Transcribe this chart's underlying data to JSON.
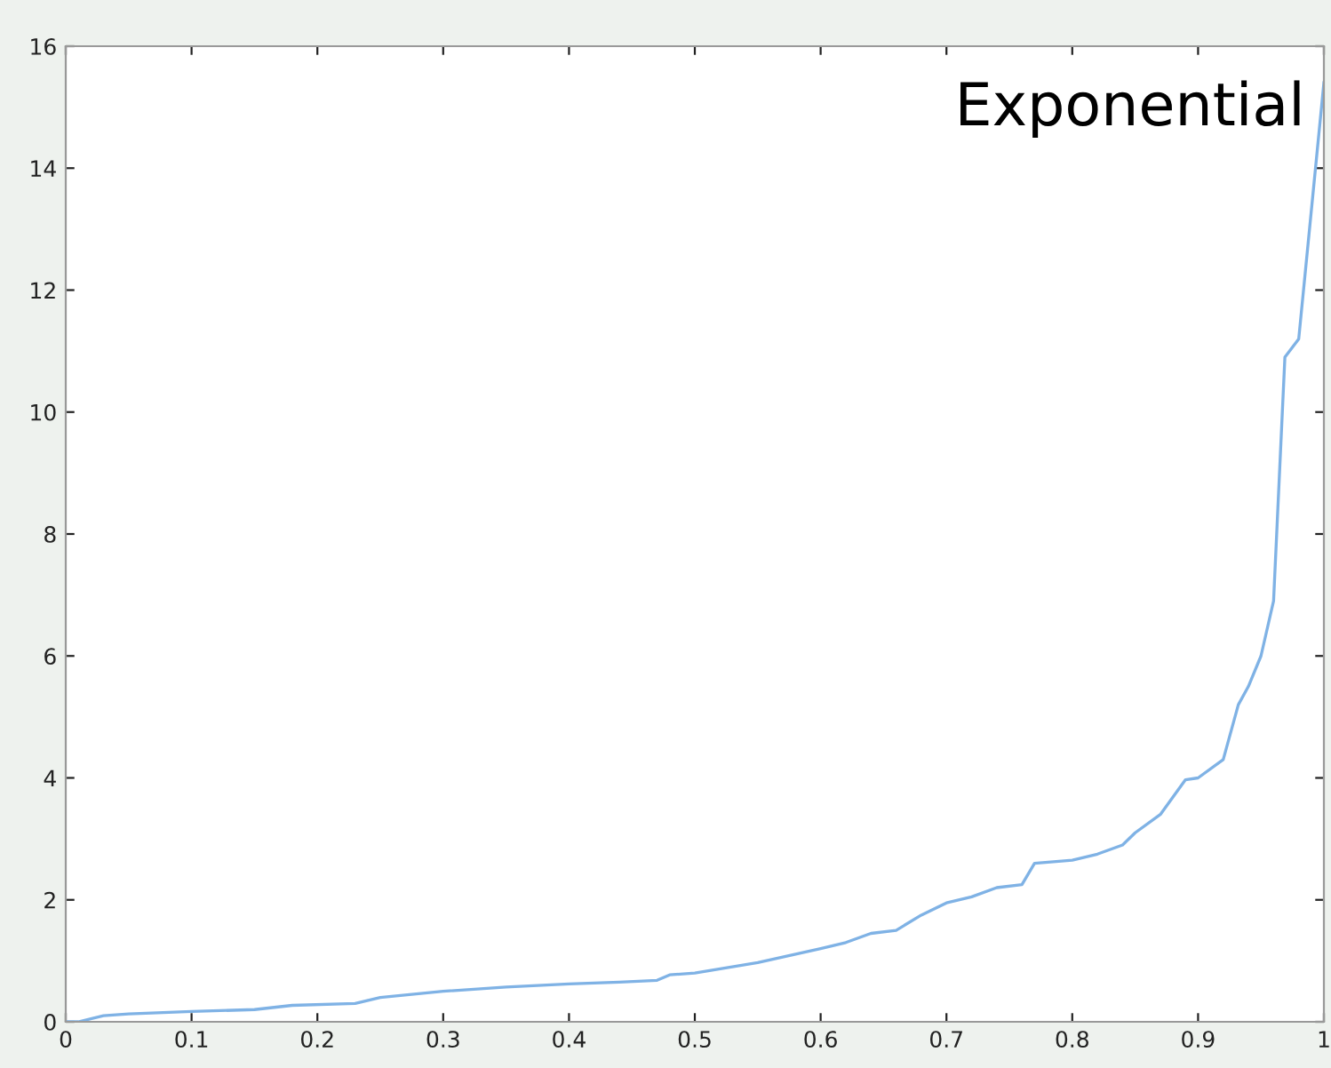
{
  "chart_data": {
    "type": "line",
    "title": "Exponential",
    "series": [
      {
        "color": "#7fb2e5",
        "x": [
          0,
          0.01,
          0.03,
          0.05,
          0.1,
          0.15,
          0.18,
          0.23,
          0.25,
          0.3,
          0.35,
          0.4,
          0.44,
          0.47,
          0.48,
          0.5,
          0.55,
          0.6,
          0.62,
          0.64,
          0.66,
          0.68,
          0.7,
          0.72,
          0.74,
          0.76,
          0.77,
          0.8,
          0.82,
          0.84,
          0.85,
          0.87,
          0.89,
          0.9,
          0.92,
          0.932,
          0.94,
          0.95,
          0.96,
          0.969,
          0.98,
          1.0
        ],
        "values": [
          0,
          0,
          0.1,
          0.13,
          0.17,
          0.2,
          0.27,
          0.3,
          0.4,
          0.5,
          0.57,
          0.62,
          0.65,
          0.68,
          0.77,
          0.8,
          0.97,
          1.2,
          1.3,
          1.45,
          1.5,
          1.75,
          1.95,
          2.05,
          2.2,
          2.25,
          2.6,
          2.65,
          2.75,
          2.9,
          3.1,
          3.4,
          3.97,
          4.0,
          4.3,
          5.2,
          5.5,
          6.0,
          6.9,
          10.9,
          11.2,
          15.4
        ]
      }
    ],
    "xlim": [
      0,
      1
    ],
    "ylim": [
      0,
      16
    ],
    "xticks": [
      0,
      0.1,
      0.2,
      0.3,
      0.4,
      0.5,
      0.6,
      0.7,
      0.8,
      0.9,
      1
    ],
    "yticks": [
      0,
      2,
      4,
      6,
      8,
      10,
      12,
      14,
      16
    ],
    "grid": false,
    "legend": false
  }
}
